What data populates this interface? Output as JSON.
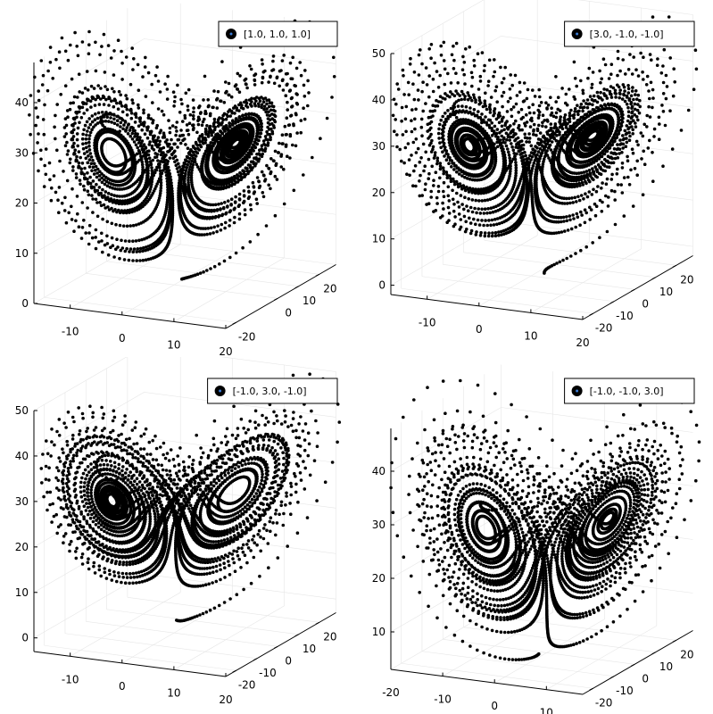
{
  "chart_data": [
    {
      "type": "scatter3d",
      "system": "lorenz",
      "legend": "[1.0, 1.0, 1.0]",
      "legend_position": "top-right",
      "initial": [
        1.0,
        1.0,
        1.0
      ],
      "xlim": [
        -17,
        20
      ],
      "ylim": [
        -25,
        28
      ],
      "zlim": [
        0,
        48
      ],
      "xticks": [
        -10,
        0,
        10,
        20
      ],
      "yticks": [
        -20,
        0,
        10,
        20
      ],
      "zticks": [
        0,
        10,
        20,
        30,
        40
      ],
      "marker_color": "#000000"
    },
    {
      "type": "scatter3d",
      "system": "lorenz",
      "legend": "[3.0, -1.0, -1.0]",
      "legend_position": "top-right",
      "initial": [
        3.0,
        -1.0,
        -1.0
      ],
      "xlim": [
        -17,
        20
      ],
      "ylim": [
        -25,
        28
      ],
      "zlim": [
        -2,
        50
      ],
      "xticks": [
        -10,
        0,
        10,
        20
      ],
      "yticks": [
        -20,
        -10,
        0,
        10,
        20
      ],
      "zticks": [
        0,
        10,
        20,
        30,
        40,
        50
      ],
      "marker_color": "#000000"
    },
    {
      "type": "scatter3d",
      "system": "lorenz",
      "legend": "[-1.0, 3.0, -1.0]",
      "legend_position": "top-right",
      "initial": [
        -1.0,
        3.0,
        -1.0
      ],
      "xlim": [
        -17,
        20
      ],
      "ylim": [
        -25,
        28
      ],
      "zlim": [
        -3,
        50
      ],
      "xticks": [
        -10,
        0,
        10,
        20
      ],
      "yticks": [
        -20,
        -10,
        0,
        10,
        20
      ],
      "zticks": [
        0,
        10,
        20,
        30,
        40,
        50
      ],
      "marker_color": "#000000"
    },
    {
      "type": "scatter3d",
      "system": "lorenz",
      "legend": "[-1.0, -1.0, 3.0]",
      "legend_position": "top-right",
      "initial": [
        -1.0,
        -1.0,
        3.0
      ],
      "xlim": [
        -20,
        17
      ],
      "ylim": [
        -25,
        28
      ],
      "zlim": [
        3,
        48
      ],
      "xticks": [
        -20,
        -10,
        0,
        10
      ],
      "yticks": [
        -20,
        -10,
        0,
        10,
        20
      ],
      "zticks": [
        10,
        20,
        30,
        40
      ],
      "marker_color": "#000000"
    }
  ]
}
